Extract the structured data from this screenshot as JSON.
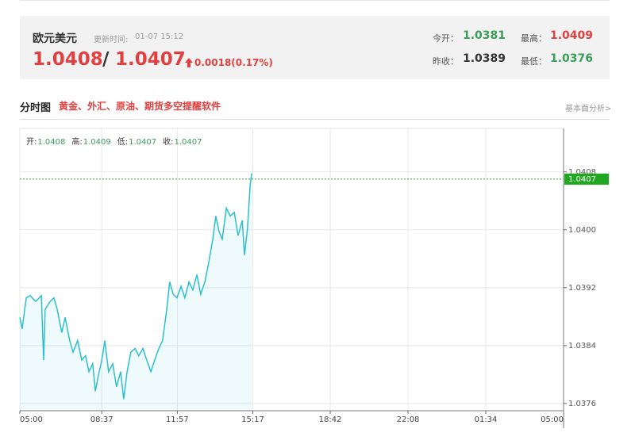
{
  "header": {
    "name": "欧元美元",
    "update_label": "更新时间:",
    "update_time": "01-07 15:12",
    "bid": "1.0408",
    "separator": "/",
    "ask": "1.0407",
    "change": "0.0018(0.17%)",
    "stats": [
      {
        "label": "今开：",
        "value": "1.0381"
      },
      {
        "label": "最高：",
        "value": "1.0409"
      },
      {
        "label": "昨收：",
        "value": "1.0389"
      },
      {
        "label": "最低：",
        "value": "1.0376"
      }
    ]
  },
  "section": {
    "title": "分时图",
    "promo": "黄金、外汇、原油、期货多空提醒软件",
    "link": "基本面分析>"
  },
  "chart_data": {
    "type": "line",
    "info": [
      {
        "label": "开:",
        "value": "1.0408"
      },
      {
        "label": "高:",
        "value": "1.0409"
      },
      {
        "label": "低:",
        "value": "1.0407"
      },
      {
        "label": "收:",
        "value": "1.0407"
      }
    ],
    "x": [
      0,
      6,
      17,
      27,
      42,
      57,
      63,
      67,
      80,
      90,
      99,
      111,
      120,
      132,
      141,
      153,
      164,
      174,
      183,
      193,
      200,
      208,
      217,
      225,
      235,
      246,
      256,
      267,
      275,
      284,
      294,
      305,
      315,
      326,
      336,
      347,
      357,
      368,
      378,
      389,
      397,
      406,
      416,
      427,
      437,
      448,
      458,
      469,
      479,
      490,
      500,
      511,
      519,
      528,
      536,
      547,
      557,
      568,
      578,
      589,
      595,
      603,
      610,
      614
    ],
    "series": [
      {
        "color": "#2bbfcf",
        "values": [
          1.03879,
          1.03863,
          1.03906,
          1.03909,
          1.03901,
          1.03909,
          1.0382,
          1.0389,
          1.03901,
          1.03906,
          1.0389,
          1.03858,
          1.03879,
          1.03847,
          1.03831,
          1.03847,
          1.0382,
          1.03826,
          1.03804,
          1.03815,
          1.03777,
          1.03799,
          1.0382,
          1.03847,
          1.03804,
          1.03815,
          1.03783,
          1.03804,
          1.03766,
          1.03804,
          1.03831,
          1.03836,
          1.03826,
          1.03836,
          1.0382,
          1.03804,
          1.0382,
          1.03836,
          1.03847,
          1.0389,
          1.03928,
          1.03911,
          1.03906,
          1.03922,
          1.03906,
          1.03928,
          1.03917,
          1.03938,
          1.03911,
          1.03928,
          1.03954,
          1.03987,
          1.04019,
          1.03997,
          1.03987,
          1.0403,
          1.04019,
          1.04024,
          1.03992,
          1.04013,
          1.03965,
          1.04003,
          1.04062,
          1.04078
        ]
      }
    ],
    "current_price": 1.0407,
    "current_color": "#1fa71f",
    "xlim": [
      0,
      1440
    ],
    "xticks": [
      {
        "value": 0,
        "label": "05:00"
      },
      {
        "value": 217,
        "label": "08:37"
      },
      {
        "value": 417,
        "label": "11:57"
      },
      {
        "value": 617,
        "label": "15:17"
      },
      {
        "value": 822,
        "label": "18:42"
      },
      {
        "value": 1028,
        "label": "22:08"
      },
      {
        "value": 1234,
        "label": "01:34"
      },
      {
        "value": 1440,
        "label": "05:00"
      }
    ],
    "ylim": [
      1.0375,
      1.0414
    ],
    "yticks": [
      {
        "value": 1.0376,
        "label": "1.0376"
      },
      {
        "value": 1.0384,
        "label": "1.0384"
      },
      {
        "value": 1.0392,
        "label": "1.0392"
      },
      {
        "value": 1.04,
        "label": "1.0400"
      },
      {
        "value": 1.0408,
        "label": "1.0408"
      }
    ],
    "grid": true
  }
}
